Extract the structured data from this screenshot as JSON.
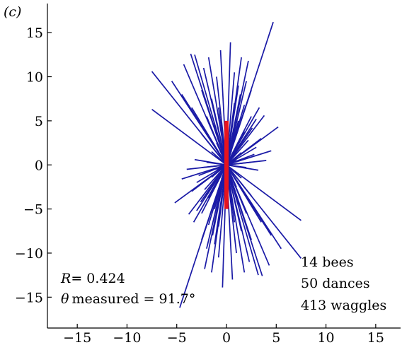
{
  "chart_data": {
    "type": "scatter",
    "panel_label": "(c)",
    "title": "",
    "xlabel": "",
    "ylabel": "",
    "xlim": [
      -18,
      17.5
    ],
    "ylim": [
      -18.5,
      18.3
    ],
    "xticks": [
      -15,
      -10,
      -5,
      0,
      5,
      10,
      15
    ],
    "yticks": [
      -15,
      -10,
      -5,
      0,
      5,
      10,
      15
    ],
    "xtick_labels": [
      "−15",
      "−10",
      "−5",
      "0",
      "5",
      "10",
      "15"
    ],
    "ytick_labels": [
      "−15",
      "−10",
      "−5",
      "0",
      "5",
      "10",
      "15"
    ],
    "grid": false,
    "axes_box": "left-bottom",
    "waggle_color": "#1a1aa6",
    "mean_color": "#e8141e",
    "mean_vector": {
      "x0": 0,
      "y0": -5,
      "x1": 0,
      "y1": 5
    },
    "waggles_note": "each waggle drawn as a segment from (-x,-y) to (x,y)",
    "waggles": [
      {
        "x": -7.5,
        "y": 10.6
      },
      {
        "x": -7.5,
        "y": 6.3
      },
      {
        "x": -4.3,
        "y": 11.4
      },
      {
        "x": -3.2,
        "y": 12.5
      },
      {
        "x": -1.8,
        "y": 12.2
      },
      {
        "x": -0.6,
        "y": 13.0
      },
      {
        "x": -5.5,
        "y": 9.5
      },
      {
        "x": -3.6,
        "y": 12.6
      },
      {
        "x": -2.3,
        "y": 11.0
      },
      {
        "x": -4.5,
        "y": 8.0
      },
      {
        "x": -1.0,
        "y": 10.0
      },
      {
        "x": -3.5,
        "y": 6.5
      },
      {
        "x": -2.5,
        "y": 8.5
      },
      {
        "x": -1.5,
        "y": 7.5
      },
      {
        "x": -2.0,
        "y": 5.5
      },
      {
        "x": -0.8,
        "y": 6.5
      },
      {
        "x": -1.2,
        "y": 4.5
      },
      {
        "x": -2.5,
        "y": 3.5
      },
      {
        "x": -0.5,
        "y": 4.0
      },
      {
        "x": -1.0,
        "y": 2.5
      },
      {
        "x": -0.4,
        "y": 2.0
      },
      {
        "x": -0.2,
        "y": 1.2
      },
      {
        "x": -1.5,
        "y": 1.5
      },
      {
        "x": 0.4,
        "y": 13.9
      },
      {
        "x": 0.8,
        "y": 10.5
      },
      {
        "x": 1.5,
        "y": 12.2
      },
      {
        "x": 2.2,
        "y": 11.8
      },
      {
        "x": 4.7,
        "y": 16.2
      },
      {
        "x": 1.2,
        "y": 9.0
      },
      {
        "x": 2.0,
        "y": 9.5
      },
      {
        "x": 2.5,
        "y": 8.5
      },
      {
        "x": 3.3,
        "y": 6.5
      },
      {
        "x": 1.8,
        "y": 6.8
      },
      {
        "x": 2.5,
        "y": 5.5
      },
      {
        "x": 1.2,
        "y": 5.0
      },
      {
        "x": 1.8,
        "y": 3.8
      },
      {
        "x": 0.7,
        "y": 3.5
      },
      {
        "x": 1.2,
        "y": 2.5
      },
      {
        "x": 0.5,
        "y": 1.6
      },
      {
        "x": 1.5,
        "y": 1.4
      },
      {
        "x": 0.3,
        "y": 1.0
      },
      {
        "x": 1.0,
        "y": 0.6
      },
      {
        "x": 0.6,
        "y": 0.3
      },
      {
        "x": 5.2,
        "y": 4.3
      },
      {
        "x": 3.5,
        "y": 3.0
      },
      {
        "x": 4.5,
        "y": 1.6
      },
      {
        "x": 3.0,
        "y": 2.0
      },
      {
        "x": 4.0,
        "y": 0.5
      },
      {
        "x": 2.5,
        "y": 0.3
      },
      {
        "x": 2.0,
        "y": -0.3
      },
      {
        "x": 3.2,
        "y": -0.6
      },
      {
        "x": 2.8,
        "y": 1.2
      },
      {
        "x": 2.2,
        "y": 2.8
      },
      {
        "x": 2.6,
        "y": 4.2
      },
      {
        "x": 3.0,
        "y": 5.2
      },
      {
        "x": 0.8,
        "y": 7.0
      },
      {
        "x": 1.4,
        "y": 8.0
      },
      {
        "x": 3.8,
        "y": 5.6
      }
    ],
    "annotations": {
      "r_label": "R",
      "r_value": "= 0.424",
      "theta_label": "θ",
      "theta_text": "measured = 91.7°",
      "bees": "14 bees",
      "dances": "50 dances",
      "waggles_count": "413 waggles"
    }
  }
}
